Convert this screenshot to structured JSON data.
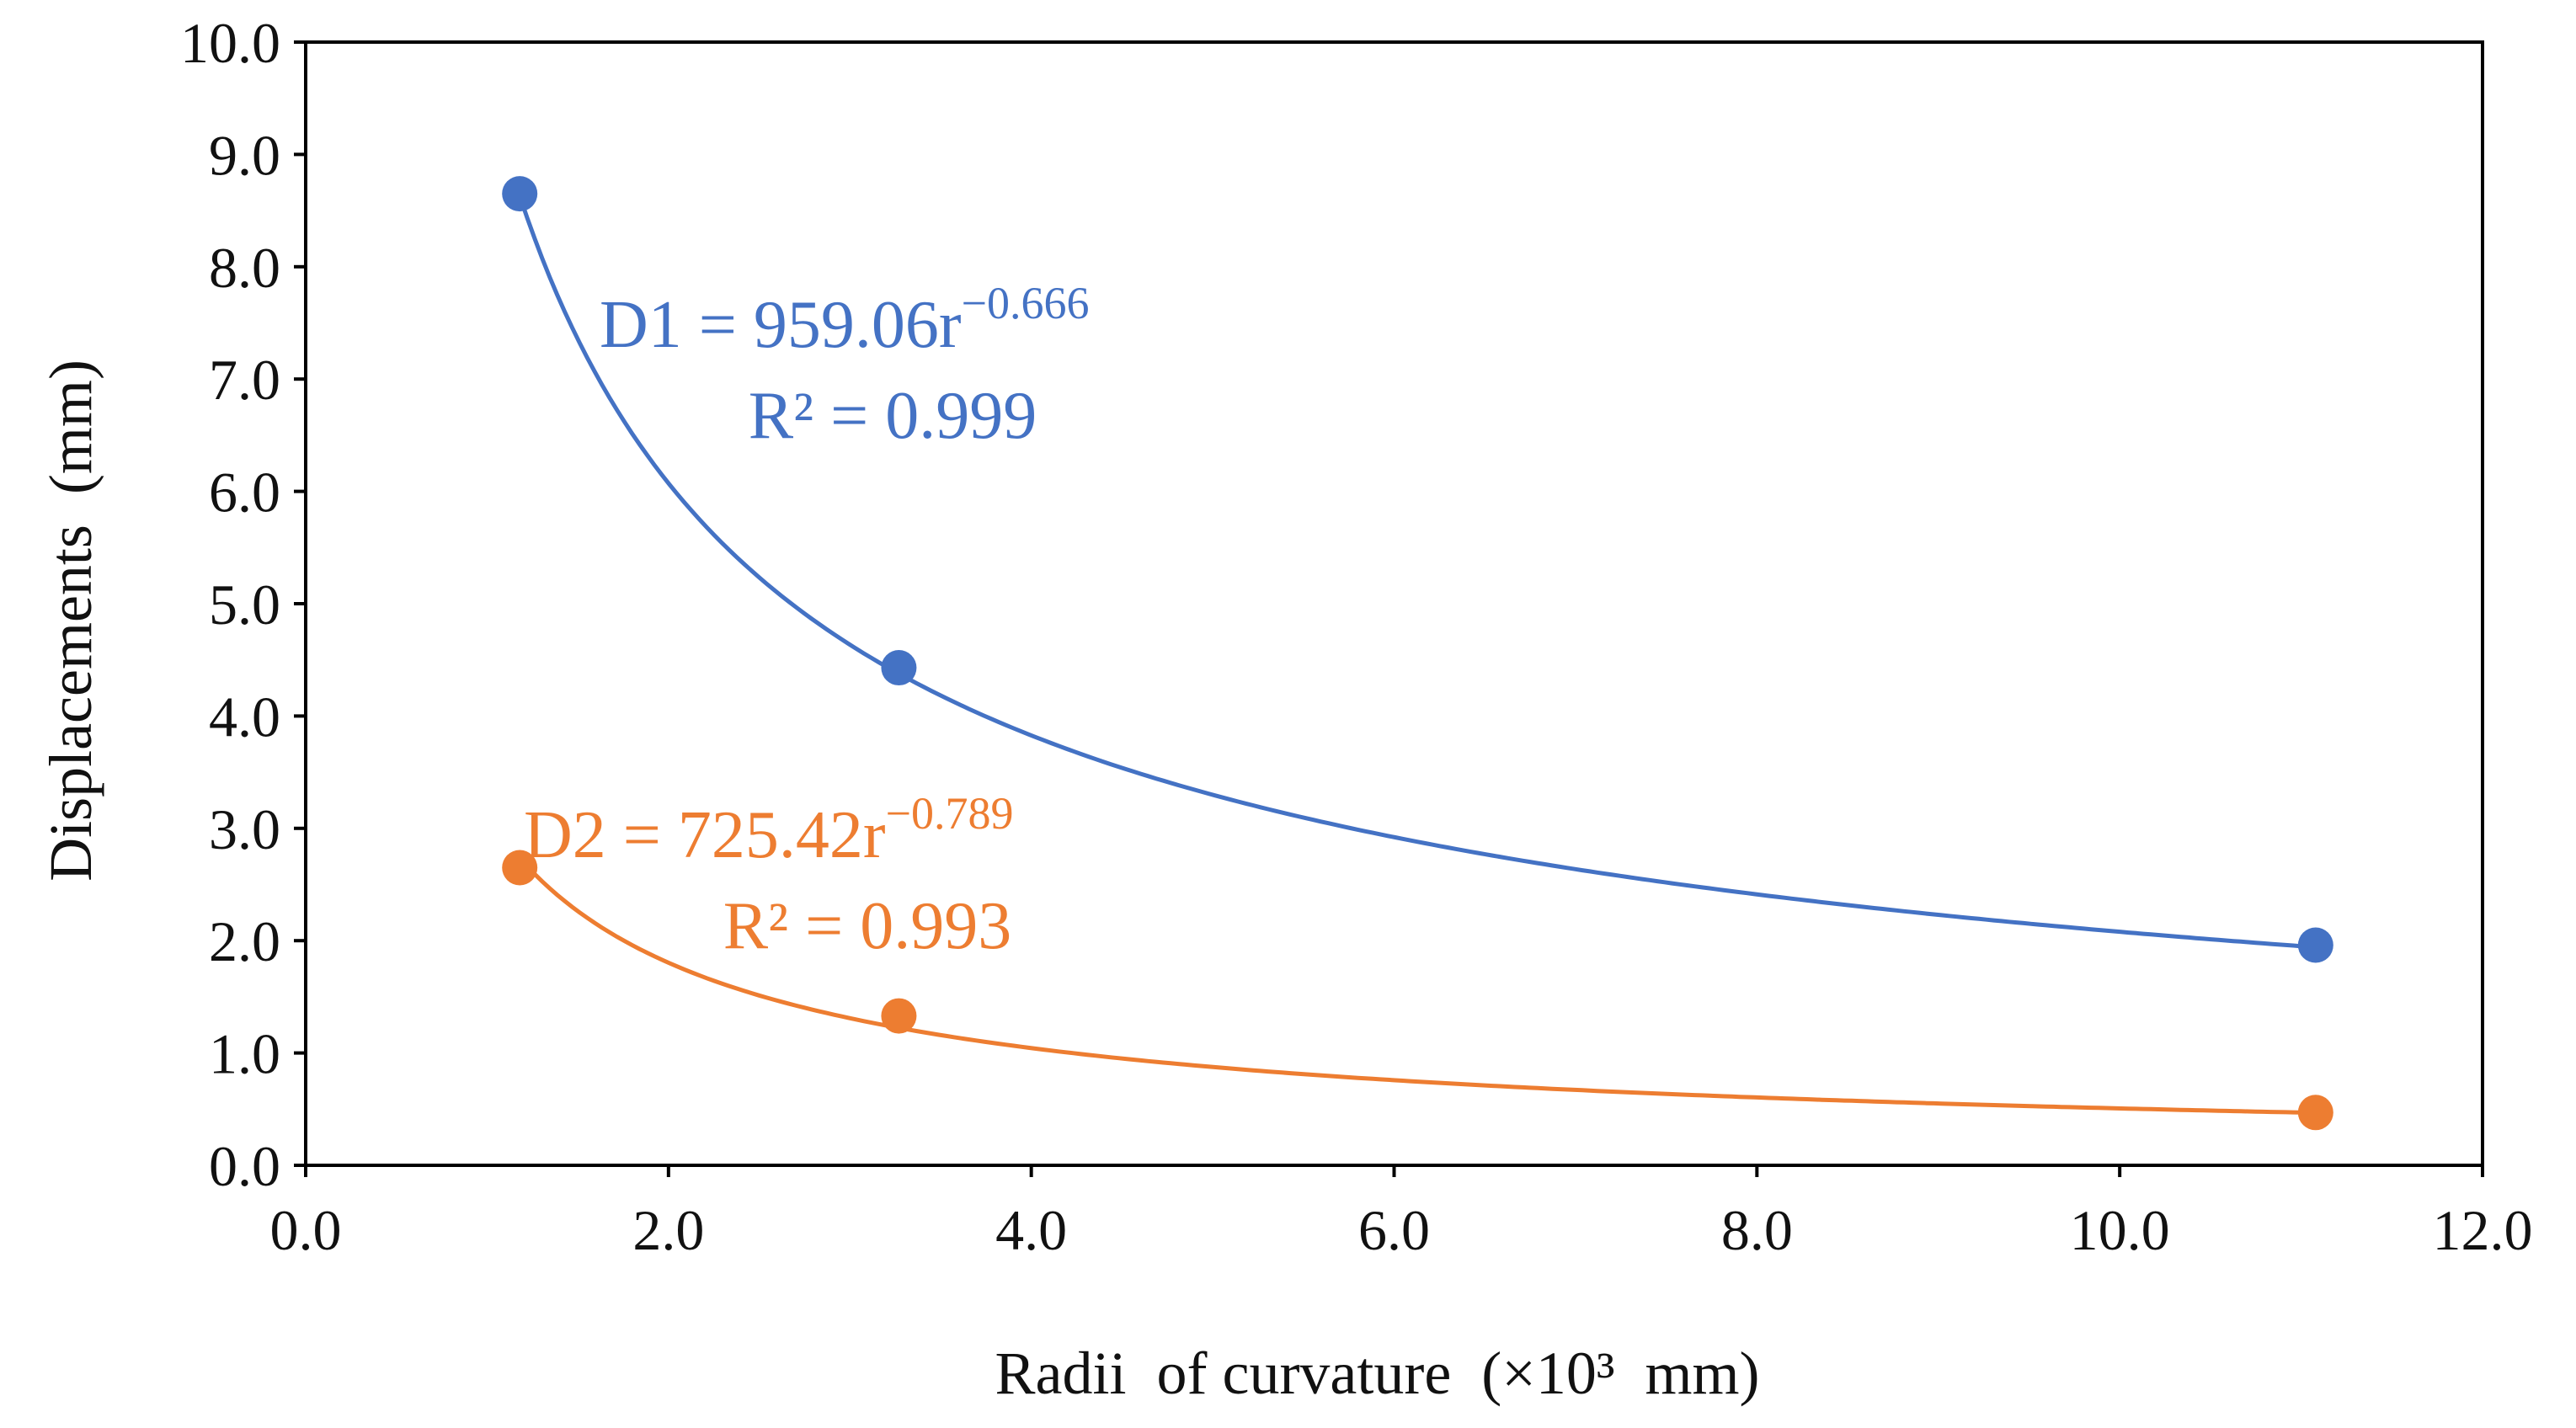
{
  "chart_data": {
    "type": "scatter",
    "title": "",
    "xlabel": "Radii  of curvature  (×10³  mm)",
    "ylabel": "Displacements  (mm)",
    "xlim": [
      0,
      12
    ],
    "ylim": [
      0,
      10
    ],
    "x_ticks": [
      0,
      2,
      4,
      6,
      8,
      10,
      12
    ],
    "x_tick_labels": [
      "0.0",
      "2.0",
      "4.0",
      "6.0",
      "8.0",
      "10.0",
      "12.0"
    ],
    "y_ticks": [
      0,
      1,
      2,
      3,
      4,
      5,
      6,
      7,
      8,
      9,
      10
    ],
    "y_tick_labels": [
      "0.0",
      "1.0",
      "2.0",
      "3.0",
      "4.0",
      "5.0",
      "6.0",
      "7.0",
      "8.0",
      "9.0",
      "10.0"
    ],
    "grid": false,
    "series": [
      {
        "name": "D1",
        "color": "#4472C4",
        "x": [
          1.18,
          3.27,
          11.08
        ],
        "y": [
          8.65,
          4.43,
          1.96
        ],
        "fit": {
          "coef": 959.06,
          "exp": -0.666
        },
        "equation_main": "D1 = 959.06r",
        "equation_exp": "−0.666",
        "r2_label": "R² = 0.999"
      },
      {
        "name": "D2",
        "color": "#ED7D31",
        "x": [
          1.18,
          3.27,
          11.08
        ],
        "y": [
          2.65,
          1.33,
          0.47
        ],
        "fit": {
          "coef": 725.42,
          "exp": -0.789
        },
        "equation_main": "D2 = 725.42r",
        "equation_exp": "−0.789",
        "r2_label": "R² = 0.993"
      }
    ]
  }
}
